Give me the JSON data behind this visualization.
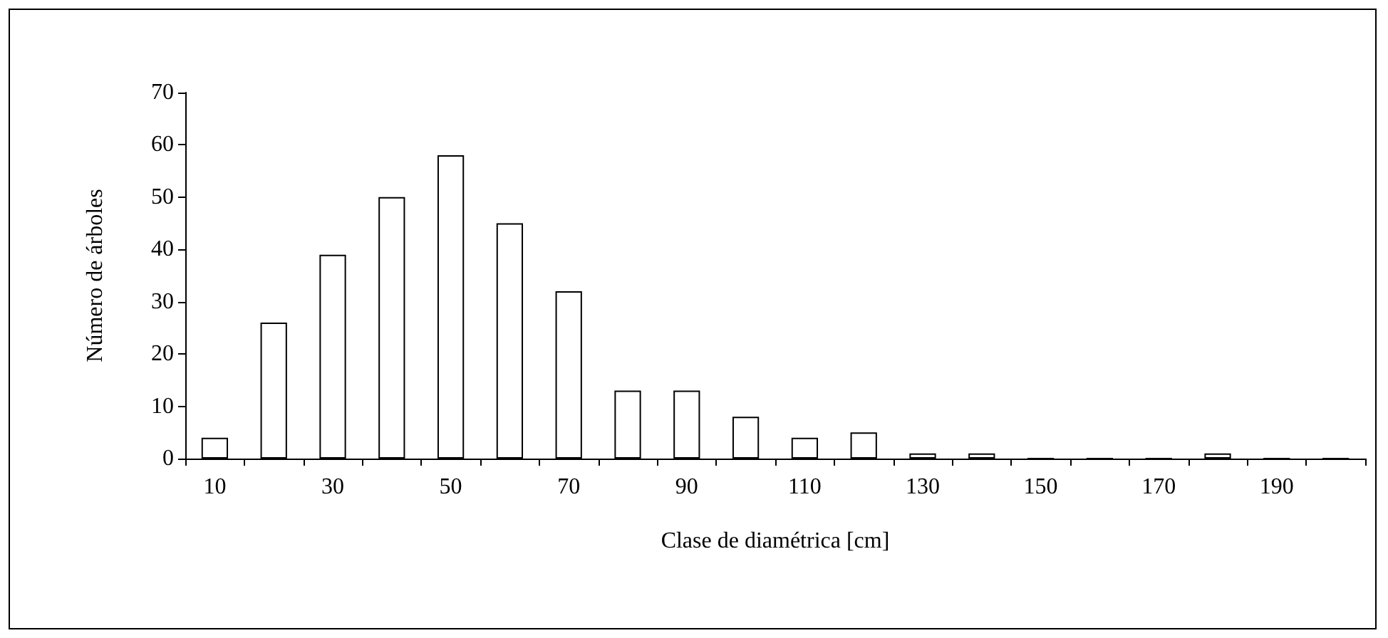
{
  "chart_data": {
    "type": "bar",
    "xlabel": "Clase de diamétrica [cm]",
    "ylabel": "Número de árboles",
    "categories": [
      "10",
      null,
      "30",
      null,
      "50",
      null,
      "70",
      null,
      "90",
      null,
      "110",
      null,
      "130",
      null,
      "150",
      null,
      "170",
      null,
      "190",
      null
    ],
    "values": [
      4,
      26,
      39,
      50,
      58,
      45,
      32,
      13,
      13,
      8,
      4,
      5,
      1,
      1,
      0,
      0,
      0,
      1,
      0,
      0
    ],
    "color": "#ffffff",
    "ylim": [
      0,
      70
    ],
    "yticks": [
      0,
      10,
      20,
      30,
      40,
      50,
      60,
      70
    ],
    "grid": false
  }
}
